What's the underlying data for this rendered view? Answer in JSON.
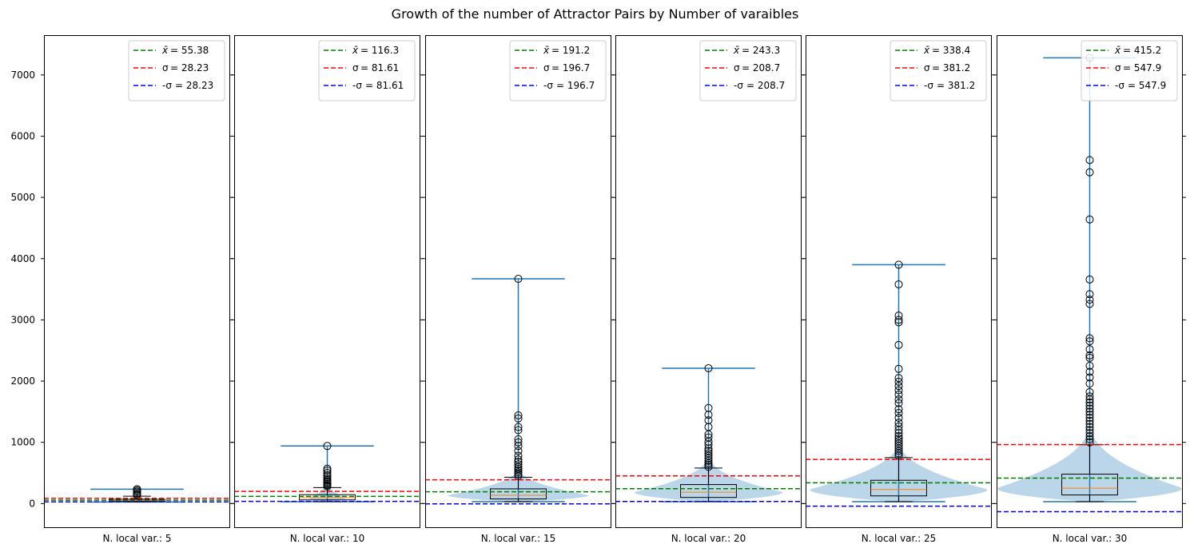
{
  "title": "Growth of the number of Attractor Pairs by Number of varaibles",
  "colors": {
    "mean": "#008000",
    "sigma_plus": "#ff0000",
    "sigma_minus": "#0000ff",
    "whisker": "#1f77b4",
    "violin": "#1f77b4",
    "median": "#ff7f0e",
    "box": "#000000"
  },
  "chart_data": {
    "type": "violin+box",
    "ylim": [
      -400,
      7650
    ],
    "yticks": [
      0,
      1000,
      2000,
      3000,
      4000,
      5000,
      6000,
      7000
    ],
    "ytick_labels": [
      "0",
      "1000",
      "2000",
      "3000",
      "4000",
      "5000",
      "6000",
      "7000"
    ],
    "legend_position": "top-right",
    "panels": [
      {
        "xlabel": "N. local var.: 5",
        "mean": 55.38,
        "sigma": 28.23,
        "minus_sigma": 28.23,
        "legend_mean": "= 55.38",
        "legend_sigma": "= 28.23",
        "legend_minus_sigma": "= 28.23",
        "min": 25,
        "max": 235,
        "q1": 35,
        "median": 50,
        "q3": 70,
        "whisker_low": 25,
        "whisker_high": 120,
        "outliers": [
          135,
          150,
          170,
          195,
          215,
          235
        ],
        "violin_halfwidth": 0.08
      },
      {
        "xlabel": "N. local var.: 10",
        "mean": 116.3,
        "sigma": 81.61,
        "minus_sigma": 81.61,
        "legend_mean": "= 116.3",
        "legend_sigma": "= 81.61",
        "legend_minus_sigma": "= 81.61",
        "min": 30,
        "max": 940,
        "q1": 60,
        "median": 95,
        "q3": 145,
        "whisker_low": 30,
        "whisker_high": 260,
        "outliers": [
          280,
          300,
          320,
          340,
          360,
          380,
          400,
          430,
          460,
          500,
          540,
          570,
          940
        ],
        "violin_halfwidth": 0.1
      },
      {
        "xlabel": "N. local var.: 15",
        "mean": 191.2,
        "sigma": 196.7,
        "minus_sigma": 196.7,
        "legend_mean": "= 191.2",
        "legend_sigma": "= 196.7",
        "legend_minus_sigma": "= 196.7",
        "min": 30,
        "max": 3670,
        "q1": 75,
        "median": 135,
        "q3": 240,
        "whisker_low": 30,
        "whisker_high": 430,
        "outliers": [
          450,
          480,
          510,
          540,
          570,
          600,
          640,
          680,
          720,
          780,
          860,
          940,
          1000,
          1050,
          1200,
          1250,
          1390,
          1440,
          3670
        ],
        "violin_halfwidth": 0.38
      },
      {
        "xlabel": "N. local var.: 20",
        "mean": 243.3,
        "sigma": 208.7,
        "minus_sigma": 208.7,
        "legend_mean": "= 243.3",
        "legend_sigma": "= 208.7",
        "legend_minus_sigma": "= 208.7",
        "min": 30,
        "max": 2210,
        "q1": 100,
        "median": 185,
        "q3": 310,
        "whisker_low": 30,
        "whisker_high": 580,
        "outliers": [
          600,
          630,
          660,
          700,
          740,
          780,
          820,
          860,
          900,
          960,
          1010,
          1080,
          1130,
          1250,
          1360,
          1450,
          1560,
          2210
        ],
        "violin_halfwidth": 0.4
      },
      {
        "xlabel": "N. local var.: 25",
        "mean": 338.4,
        "sigma": 381.2,
        "minus_sigma": 381.2,
        "legend_mean": "= 338.4",
        "legend_sigma": "= 381.2",
        "legend_minus_sigma": "= 381.2",
        "min": 30,
        "max": 3900,
        "q1": 125,
        "median": 230,
        "q3": 380,
        "whisker_low": 30,
        "whisker_high": 750,
        "outliers": [
          780,
          820,
          860,
          900,
          940,
          980,
          1020,
          1060,
          1100,
          1150,
          1200,
          1260,
          1320,
          1400,
          1480,
          1540,
          1640,
          1700,
          1780,
          1850,
          1920,
          1990,
          2050,
          2200,
          2590,
          2960,
          3000,
          3070,
          3580,
          3900
        ],
        "violin_halfwidth": 0.48
      },
      {
        "xlabel": "N. local var.: 30",
        "mean": 415.2,
        "sigma": 547.9,
        "minus_sigma": 547.9,
        "legend_mean": "= 415.2",
        "legend_sigma": "= 547.9",
        "legend_minus_sigma": "= 547.9",
        "min": 30,
        "max": 7280,
        "q1": 140,
        "median": 250,
        "q3": 480,
        "whisker_low": 30,
        "whisker_high": 960,
        "outliers": [
          1000,
          1050,
          1100,
          1150,
          1200,
          1250,
          1300,
          1350,
          1400,
          1450,
          1500,
          1550,
          1600,
          1650,
          1700,
          1750,
          1820,
          1960,
          2060,
          2150,
          2250,
          2380,
          2420,
          2520,
          2650,
          2700,
          3260,
          3330,
          3420,
          3660,
          4640,
          5410,
          5610,
          7280
        ],
        "violin_halfwidth": 0.5
      }
    ]
  }
}
